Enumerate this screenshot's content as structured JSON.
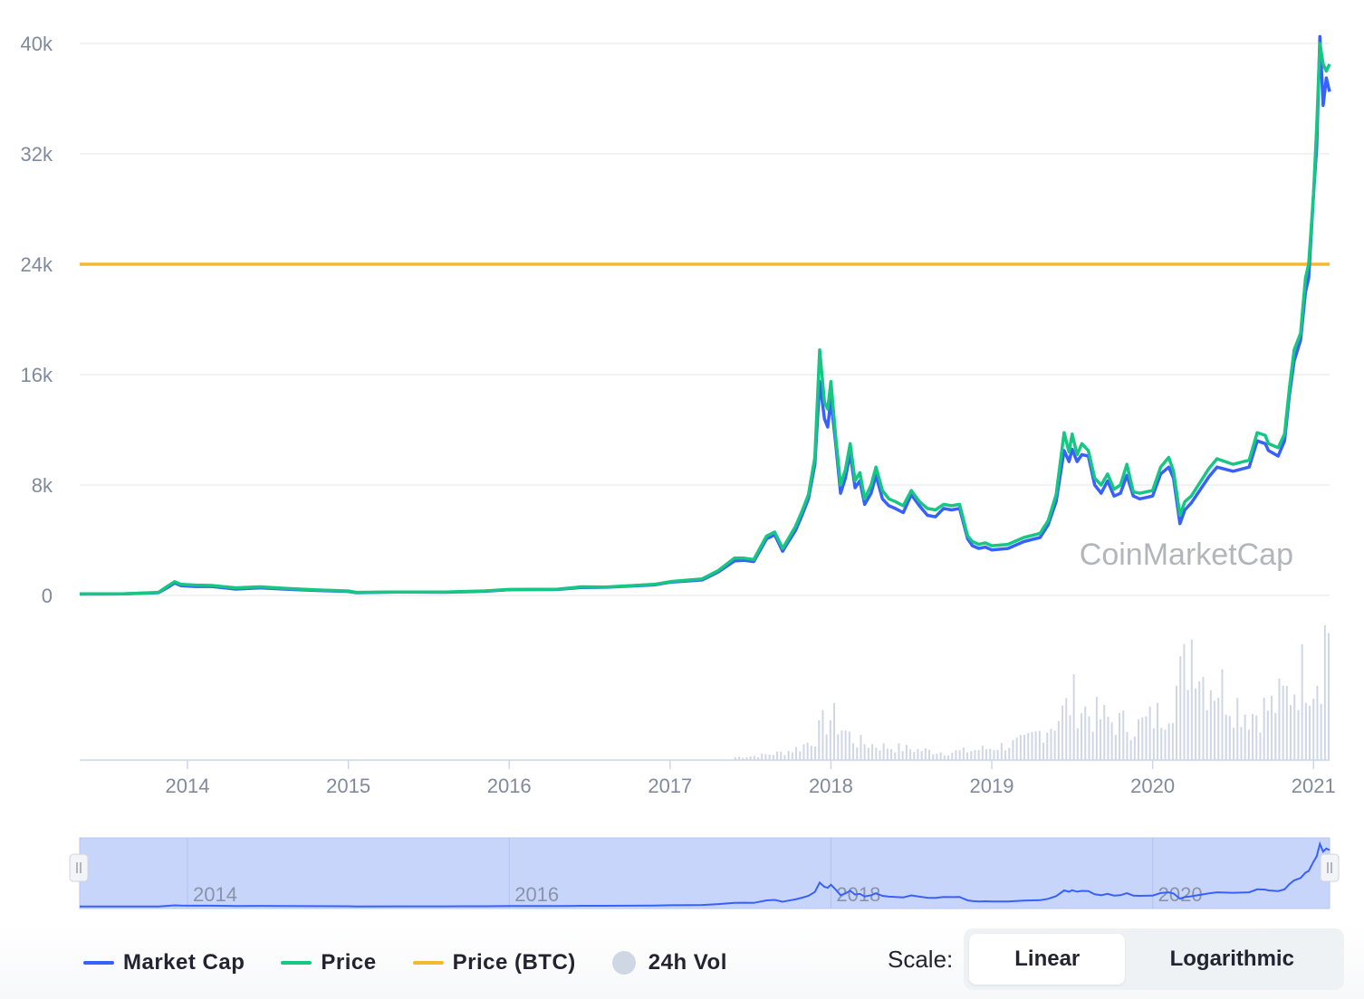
{
  "chart_data": {
    "type": "line",
    "watermark": "CoinMarketCap",
    "y_axis": {
      "ticks": [
        0,
        8000,
        16000,
        24000,
        32000,
        40000
      ],
      "tick_labels": [
        "0",
        "8k",
        "16k",
        "24k",
        "32k",
        "40k"
      ],
      "ylim": [
        0,
        40000
      ]
    },
    "x_axis": {
      "range": [
        2013.33,
        2021.1
      ],
      "ticks": [
        2014,
        2015,
        2016,
        2017,
        2018,
        2019,
        2020,
        2021
      ],
      "tick_labels": [
        "2014",
        "2015",
        "2016",
        "2017",
        "2018",
        "2019",
        "2020",
        "2021"
      ]
    },
    "series": [
      {
        "name": "Market Cap",
        "color": "#3861fb",
        "x": [
          2013.33,
          2013.6,
          2013.82,
          2013.88,
          2013.92,
          2013.96,
          2014.05,
          2014.15,
          2014.3,
          2014.45,
          2014.6,
          2014.8,
          2015.0,
          2015.05,
          2015.3,
          2015.6,
          2015.85,
          2016.0,
          2016.3,
          2016.45,
          2016.6,
          2016.9,
          2017.0,
          2017.2,
          2017.3,
          2017.4,
          2017.46,
          2017.52,
          2017.6,
          2017.65,
          2017.7,
          2017.72,
          2017.78,
          2017.82,
          2017.86,
          2017.9,
          2017.93,
          2017.96,
          2017.98,
          2018.0,
          2018.03,
          2018.06,
          2018.09,
          2018.12,
          2018.15,
          2018.18,
          2018.21,
          2018.25,
          2018.28,
          2018.32,
          2018.36,
          2018.4,
          2018.45,
          2018.5,
          2018.55,
          2018.6,
          2018.65,
          2018.7,
          2018.75,
          2018.8,
          2018.85,
          2018.88,
          2018.92,
          2018.96,
          2019.0,
          2019.1,
          2019.2,
          2019.3,
          2019.35,
          2019.4,
          2019.45,
          2019.48,
          2019.5,
          2019.53,
          2019.56,
          2019.6,
          2019.64,
          2019.68,
          2019.72,
          2019.76,
          2019.8,
          2019.84,
          2019.88,
          2019.92,
          2020.0,
          2020.05,
          2020.1,
          2020.13,
          2020.17,
          2020.2,
          2020.24,
          2020.35,
          2020.4,
          2020.5,
          2020.6,
          2020.65,
          2020.7,
          2020.72,
          2020.78,
          2020.82,
          2020.85,
          2020.88,
          2020.92,
          2020.95,
          2020.97,
          2021.0,
          2021.02,
          2021.04,
          2021.06,
          2021.08,
          2021.1
        ],
        "values": [
          100,
          110,
          200,
          600,
          900,
          700,
          650,
          650,
          460,
          550,
          460,
          360,
          290,
          200,
          240,
          230,
          300,
          420,
          430,
          580,
          590,
          760,
          960,
          1120,
          1700,
          2500,
          2550,
          2450,
          4100,
          4400,
          3200,
          3600,
          4700,
          5800,
          7000,
          9500,
          15500,
          12800,
          12200,
          14200,
          11000,
          7400,
          8500,
          10300,
          7800,
          8300,
          6600,
          7400,
          8700,
          7000,
          6500,
          6300,
          6000,
          7300,
          6500,
          5800,
          5700,
          6300,
          6200,
          6300,
          4100,
          3600,
          3400,
          3500,
          3300,
          3400,
          3900,
          4200,
          5100,
          6800,
          10500,
          9700,
          10600,
          9700,
          10200,
          10100,
          8000,
          7400,
          8300,
          7200,
          7400,
          8700,
          7200,
          7000,
          7200,
          8800,
          9300,
          8500,
          5200,
          6200,
          6700,
          8600,
          9300,
          9000,
          9300,
          11200,
          11000,
          10500,
          10100,
          11200,
          14500,
          17000,
          18500,
          22000,
          23000,
          29000,
          32500,
          40500,
          35500,
          37500,
          36500
        ]
      },
      {
        "name": "Price",
        "color": "#16c784",
        "x": [
          2013.33,
          2013.6,
          2013.82,
          2013.88,
          2013.92,
          2013.96,
          2014.05,
          2014.15,
          2014.3,
          2014.45,
          2014.6,
          2014.8,
          2015.0,
          2015.05,
          2015.3,
          2015.6,
          2015.85,
          2016.0,
          2016.3,
          2016.45,
          2016.6,
          2016.9,
          2017.0,
          2017.2,
          2017.3,
          2017.4,
          2017.46,
          2017.52,
          2017.6,
          2017.65,
          2017.7,
          2017.72,
          2017.78,
          2017.82,
          2017.86,
          2017.9,
          2017.93,
          2017.96,
          2017.98,
          2018.0,
          2018.03,
          2018.06,
          2018.09,
          2018.12,
          2018.15,
          2018.18,
          2018.21,
          2018.25,
          2018.28,
          2018.32,
          2018.36,
          2018.4,
          2018.45,
          2018.5,
          2018.55,
          2018.6,
          2018.65,
          2018.7,
          2018.75,
          2018.8,
          2018.85,
          2018.88,
          2018.92,
          2018.96,
          2019.0,
          2019.1,
          2019.2,
          2019.3,
          2019.35,
          2019.4,
          2019.45,
          2019.48,
          2019.5,
          2019.53,
          2019.56,
          2019.6,
          2019.64,
          2019.68,
          2019.72,
          2019.76,
          2019.8,
          2019.84,
          2019.88,
          2019.92,
          2020.0,
          2020.05,
          2020.1,
          2020.13,
          2020.17,
          2020.2,
          2020.24,
          2020.35,
          2020.4,
          2020.5,
          2020.6,
          2020.65,
          2020.7,
          2020.72,
          2020.78,
          2020.82,
          2020.85,
          2020.88,
          2020.92,
          2020.95,
          2020.97,
          2021.0,
          2021.02,
          2021.04,
          2021.06,
          2021.08,
          2021.1
        ],
        "values": [
          110,
          120,
          220,
          700,
          1000,
          800,
          750,
          720,
          550,
          620,
          520,
          400,
          320,
          220,
          250,
          240,
          330,
          430,
          450,
          620,
          610,
          800,
          1000,
          1200,
          1800,
          2700,
          2700,
          2600,
          4300,
          4600,
          3400,
          3800,
          5000,
          6100,
          7300,
          10000,
          17800,
          14000,
          13500,
          15500,
          11500,
          8000,
          9100,
          11000,
          8300,
          8900,
          7000,
          8000,
          9300,
          7600,
          7000,
          6800,
          6500,
          7600,
          6800,
          6300,
          6200,
          6600,
          6500,
          6600,
          4300,
          3900,
          3700,
          3800,
          3600,
          3700,
          4200,
          4500,
          5400,
          7300,
          11800,
          10400,
          11700,
          10200,
          11000,
          10500,
          8500,
          8000,
          8800,
          7700,
          8000,
          9500,
          7500,
          7400,
          7600,
          9300,
          10000,
          9000,
          5800,
          6800,
          7200,
          9200,
          9900,
          9500,
          9800,
          11800,
          11600,
          11000,
          10700,
          11700,
          15000,
          17800,
          19000,
          23000,
          24000,
          29000,
          34000,
          40000,
          38500,
          38000,
          38500
        ]
      }
    ],
    "price_btc": {
      "name": "Price (BTC)",
      "color": "#f3ba2f",
      "value": 24000
    },
    "volume": {
      "name": "24h Vol",
      "color": "#cfd6e4",
      "x": [
        2017.4,
        2017.55,
        2017.7,
        2017.8,
        2017.9,
        2017.95,
        2018.0,
        2018.05,
        2018.15,
        2018.3,
        2018.5,
        2018.7,
        2018.85,
        2019.0,
        2019.2,
        2019.35,
        2019.45,
        2019.5,
        2019.6,
        2019.75,
        2019.9,
        2020.05,
        2020.15,
        2020.2,
        2020.25,
        2020.3,
        2020.4,
        2020.5,
        2020.6,
        2020.75,
        2020.85,
        2020.95,
        2021.0,
        2021.05,
        2021.08,
        2021.1
      ],
      "values": [
        0.02,
        0.03,
        0.05,
        0.08,
        0.15,
        0.24,
        0.28,
        0.22,
        0.12,
        0.09,
        0.07,
        0.05,
        0.06,
        0.08,
        0.12,
        0.22,
        0.32,
        0.4,
        0.3,
        0.25,
        0.22,
        0.3,
        0.48,
        0.6,
        0.85,
        0.55,
        0.5,
        0.38,
        0.3,
        0.35,
        0.45,
        0.6,
        0.55,
        0.65,
        0.95,
        0.78
      ]
    },
    "navigator": {
      "tick_labels": [
        "2014",
        "2016",
        "2018",
        "2020"
      ],
      "ticks": [
        2014,
        2016,
        2018,
        2020
      ],
      "range": [
        2013.33,
        2021.1
      ]
    }
  },
  "legend": {
    "items": [
      {
        "label": "Market Cap",
        "color": "#3861fb",
        "kind": "line"
      },
      {
        "label": "Price",
        "color": "#16c784",
        "kind": "line"
      },
      {
        "label": "Price (BTC)",
        "color": "#f3ba2f",
        "kind": "line"
      },
      {
        "label": "24h Vol",
        "color": "#cfd6e4",
        "kind": "dot"
      }
    ]
  },
  "scale": {
    "label": "Scale:",
    "options": [
      "Linear",
      "Logarithmic"
    ],
    "selected": "Linear"
  }
}
